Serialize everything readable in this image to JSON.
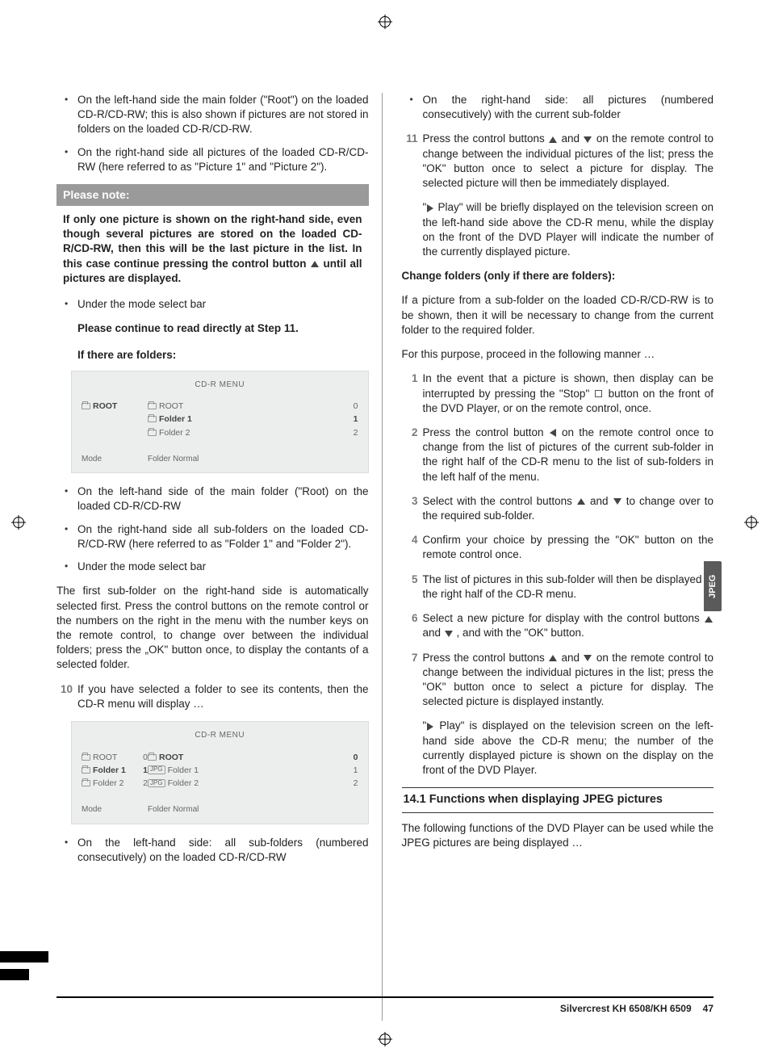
{
  "left": {
    "bul1": [
      "On the left-hand side the main folder (\"Root\") on the loaded CD-R/CD-RW; this is also shown if pictures are not stored in folders on the loaded CD-R/CD-RW.",
      "On the right-hand side all pictures of the loaded CD-R/CD-RW (here referred to as \"Picture 1\" and \"Picture 2\")."
    ],
    "note_hdr": "Please note:",
    "note_body_pre": "If only one picture is shown on the right-hand side, even though several pictures are stored on the loaded CD-R/CD-RW, then this will be the last picture in the list. In this case continue pressing the control button ",
    "note_body_post": " until all pictures are displayed.",
    "bul2": [
      "Under the mode select bar"
    ],
    "step11_lead": "Please continue to read directly at Step 11.",
    "if_folders": "If there are folders:",
    "menu1": {
      "title": "CD-R MENU",
      "left": [
        {
          "bold": true,
          "label": "ROOT"
        }
      ],
      "right": [
        {
          "bold": false,
          "label": "ROOT",
          "num": "0"
        },
        {
          "bold": true,
          "label": "Folder 1",
          "num": "1"
        },
        {
          "bold": false,
          "label": "Folder 2",
          "num": "2"
        }
      ],
      "mode_l": "Mode",
      "mode_r": "Folder Normal"
    },
    "bul3": [
      "On the left-hand side of the main folder (\"Root) on the loaded CD-R/CD-RW",
      "On the right-hand side all sub-folders on the loaded CD-R/CD-RW (here referred to as \"Folder 1\" and \"Folder 2\").",
      "Under the mode select bar"
    ],
    "para1": "The first sub-folder on the right-hand side is automatically selected first. Press the control buttons on the remote control or the numbers on the right in the menu with the number keys on the remote control, to change over between the individual folders; press the „OK\" button once, to display the contants of a selected folder.",
    "step10": "If you have selected a folder to see its contents, then the CD-R menu will display …",
    "menu2": {
      "title": "CD-R MENU",
      "left": [
        {
          "bold": false,
          "label": "ROOT",
          "num": "0"
        },
        {
          "bold": true,
          "label": "Folder 1",
          "num": "1"
        },
        {
          "bold": false,
          "label": "Folder 2",
          "num": "2"
        }
      ],
      "right": [
        {
          "bold": true,
          "label": "ROOT",
          "num": "0",
          "tag": "folder"
        },
        {
          "bold": false,
          "label": "Folder 1",
          "num": "1",
          "tag": "JPG"
        },
        {
          "bold": false,
          "label": "Folder 2",
          "num": "2",
          "tag": "JPG"
        }
      ],
      "mode_l": "Mode",
      "mode_r": "Folder Normal"
    },
    "bul4": [
      "On the left-hand side: all sub-folders (numbered consecutively) on the loaded CD-R/CD-RW"
    ]
  },
  "right": {
    "bul_top": [
      "On the right-hand side: all pictures (numbered consecutively) with the current sub-folder"
    ],
    "step11_a": "Press the control buttons ",
    "step11_b": " and ",
    "step11_c": " on the remote control to change between the individual pictures of the list; press the \"OK\" button once to select a picture for display. The selected picture will then be immediately displayed.",
    "play_para_a": "\"",
    "play_para_b": " Play\" will be briefly displayed on the television screen on the left-hand side above the CD-R menu, while the display on the front of the DVD Player will indicate the number of the currently displayed picture.",
    "chg_hdr": "Change folders (only if there are folders):",
    "chg_p1": "If a picture from a sub-folder on the loaded CD-R/CD-RW is to be shown, then it will be necessary to change from the current folder to the required folder.",
    "chg_p2": "For this purpose, proceed in the following manner …",
    "s1_a": "In the event that a picture is shown, then display can be interrupted by pressing the \"Stop\" ",
    "s1_b": " button on the front of the DVD Player, or on the remote control, once.",
    "s2_a": "Press the control button ",
    "s2_b": " on the remote control once to change from the list of pictures of the current sub-folder in the right half of the CD-R menu to the list of sub-folders in the left half of the menu.",
    "s3_a": "Select with the control buttons ",
    "s3_b": " and ",
    "s3_c": " to change over to the required sub-folder.",
    "s4": " Confirm your choice by pressing the \"OK\" button on the remote control once.",
    "s5": "The list of pictures in this sub-folder will then be displayed in the right half of the CD-R menu.",
    "s6_a": "Select a new picture for display with the control buttons ",
    "s6_b": " and ",
    "s6_c": " , and with the \"OK\" button.",
    "s7_a": "Press the control buttons ",
    "s7_b": " and ",
    "s7_c": " on the remote control to change between the individual pictures in the list; press the \"OK\" button once to select a picture for display. The selected picture is displayed instantly.",
    "play2_a": "\"",
    "play2_b": " Play\" is displayed on the television screen on the left-hand side above the CD-R menu; the number of the currently displayed picture is shown on the display on the front of the DVD Player.",
    "sec_head": "14.1 Functions when displaying JPEG pictures",
    "sec_p": "The following functions of the DVD Player can be used while the JPEG pictures are being displayed …"
  },
  "side_tab": "JPEG",
  "footer_model": "Silvercrest KH 6508/KH 6509",
  "footer_page": "47"
}
